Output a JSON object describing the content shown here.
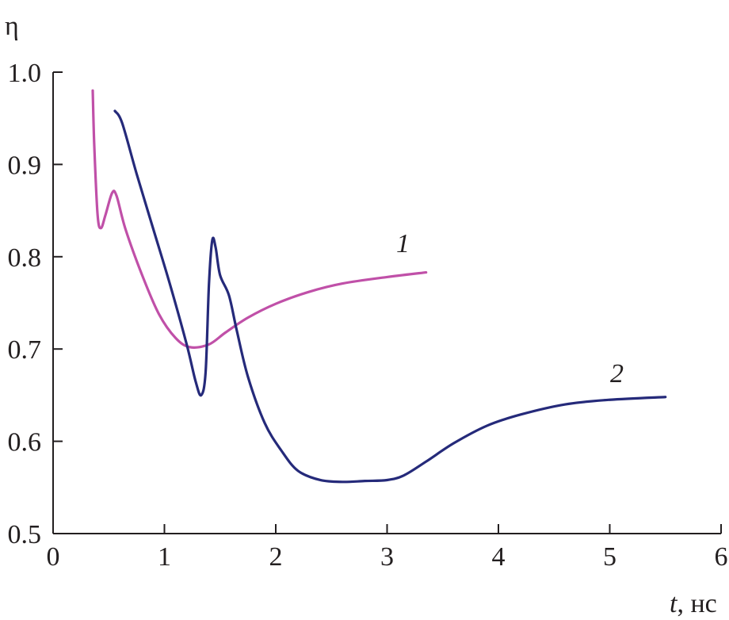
{
  "chart_data": {
    "type": "line",
    "title": "",
    "xlabel_italic": "t",
    "xlabel_unit": ", нс",
    "ylabel": "η",
    "xlim": [
      0,
      6
    ],
    "ylim": [
      0.5,
      1.0
    ],
    "x_ticks": [
      "0",
      "1",
      "2",
      "3",
      "4",
      "5",
      "6"
    ],
    "y_ticks": [
      "0.5",
      "0.6",
      "0.7",
      "0.8",
      "0.9",
      "1.0"
    ],
    "grid": false,
    "series": [
      {
        "name": "1",
        "color": "#c050a8",
        "points": [
          [
            0.356,
            0.98
          ],
          [
            0.37,
            0.92
          ],
          [
            0.4,
            0.845
          ],
          [
            0.43,
            0.831
          ],
          [
            0.47,
            0.845
          ],
          [
            0.53,
            0.869
          ],
          [
            0.57,
            0.866
          ],
          [
            0.65,
            0.83
          ],
          [
            0.8,
            0.78
          ],
          [
            0.95,
            0.738
          ],
          [
            1.1,
            0.712
          ],
          [
            1.23,
            0.702
          ],
          [
            1.4,
            0.705
          ],
          [
            1.55,
            0.718
          ],
          [
            1.75,
            0.734
          ],
          [
            2.0,
            0.749
          ],
          [
            2.3,
            0.762
          ],
          [
            2.6,
            0.771
          ],
          [
            3.0,
            0.778
          ],
          [
            3.35,
            0.783
          ]
        ]
      },
      {
        "name": "2",
        "color": "#252a7a",
        "points": [
          [
            0.555,
            0.958
          ],
          [
            0.62,
            0.945
          ],
          [
            0.75,
            0.89
          ],
          [
            0.9,
            0.83
          ],
          [
            1.05,
            0.77
          ],
          [
            1.2,
            0.705
          ],
          [
            1.28,
            0.665
          ],
          [
            1.33,
            0.65
          ],
          [
            1.37,
            0.675
          ],
          [
            1.4,
            0.77
          ],
          [
            1.43,
            0.818
          ],
          [
            1.46,
            0.81
          ],
          [
            1.5,
            0.78
          ],
          [
            1.58,
            0.758
          ],
          [
            1.65,
            0.72
          ],
          [
            1.75,
            0.67
          ],
          [
            1.9,
            0.62
          ],
          [
            2.05,
            0.59
          ],
          [
            2.2,
            0.568
          ],
          [
            2.4,
            0.558
          ],
          [
            2.6,
            0.556
          ],
          [
            2.8,
            0.557
          ],
          [
            3.0,
            0.558
          ],
          [
            3.15,
            0.563
          ],
          [
            3.35,
            0.578
          ],
          [
            3.6,
            0.598
          ],
          [
            3.9,
            0.617
          ],
          [
            4.2,
            0.629
          ],
          [
            4.6,
            0.64
          ],
          [
            5.0,
            0.645
          ],
          [
            5.5,
            0.648
          ]
        ]
      }
    ]
  }
}
